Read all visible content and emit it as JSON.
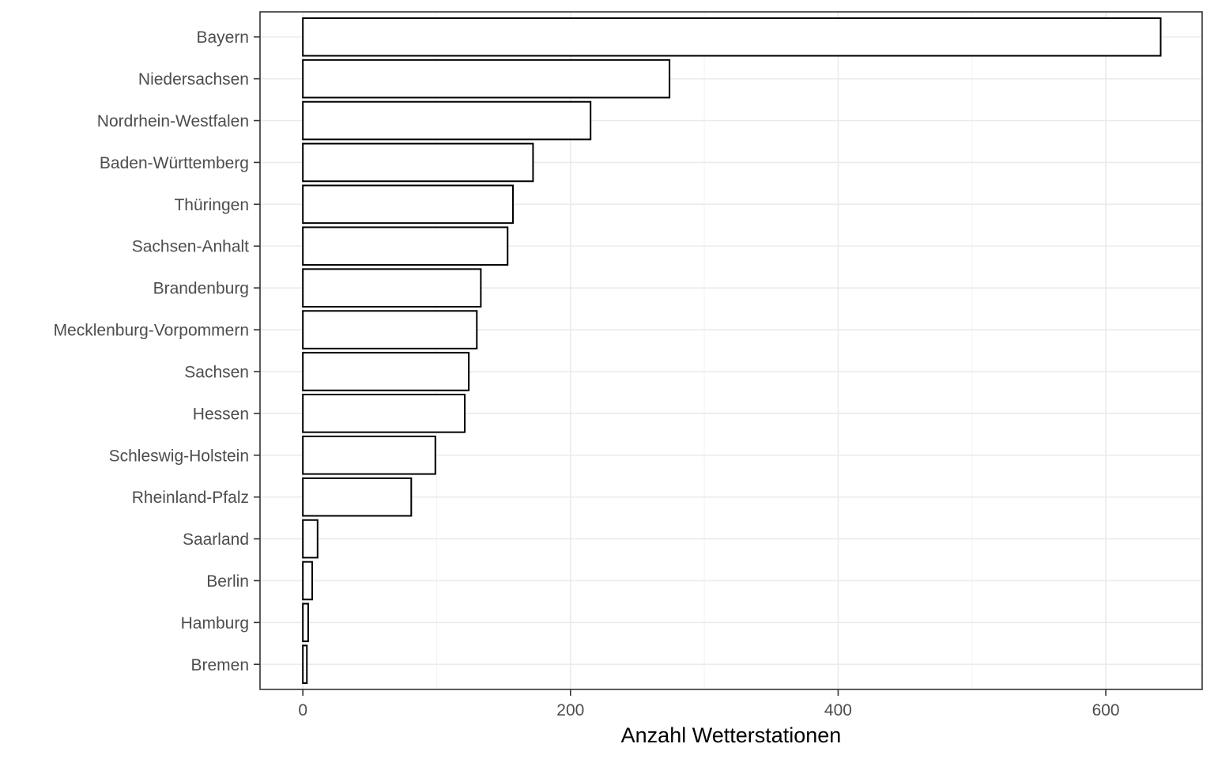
{
  "chart_data": {
    "type": "bar",
    "orientation": "horizontal",
    "title": "",
    "xlabel": "Anzahl Wetterstationen",
    "ylabel": "",
    "categories": [
      "Bayern",
      "Niedersachsen",
      "Nordrhein-Westfalen",
      "Baden-Württemberg",
      "Thüringen",
      "Sachsen-Anhalt",
      "Brandenburg",
      "Mecklenburg-Vorpommern",
      "Sachsen",
      "Hessen",
      "Schleswig-Holstein",
      "Rheinland-Pfalz",
      "Saarland",
      "Berlin",
      "Hamburg",
      "Bremen"
    ],
    "values": [
      641,
      274,
      215,
      172,
      157,
      153,
      133,
      130,
      124,
      121,
      99,
      81,
      11,
      7,
      4,
      3
    ],
    "xlim": [
      -32,
      672
    ],
    "xticks": [
      0,
      200,
      400,
      600
    ],
    "xtick_labels": [
      "0",
      "200",
      "400",
      "600"
    ],
    "grid": true,
    "legend": "none",
    "colors": {
      "bar_fill": "#ffffff",
      "bar_stroke": "#000000",
      "grid": "#ebebeb"
    }
  }
}
